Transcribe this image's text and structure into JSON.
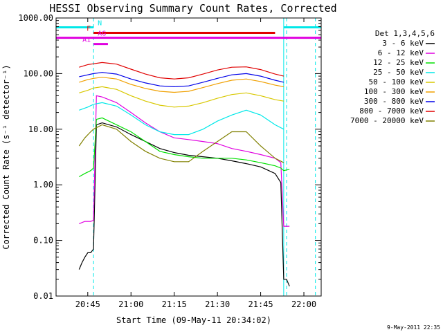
{
  "chart_data": {
    "type": "line",
    "title": "HESSI Observing Summary Count Rates, Corrected",
    "xlabel": "Start Time (09-May-11 20:34:02)",
    "ylabel": "Corrected Count Rate (s⁻¹ detector⁻¹)",
    "y_scale": "log",
    "ylim": [
      0.01,
      1000
    ],
    "xlim": [
      "20:34",
      "22:06"
    ],
    "x_ticks": [
      "20:45",
      "21:00",
      "21:15",
      "21:30",
      "21:45",
      "22:00"
    ],
    "y_ticks": [
      "0.01",
      "0.10",
      "1.00",
      "10.00",
      "100.00",
      "1000.00"
    ],
    "legend_title": "Det 1,3,4,5,6",
    "legend_placement": "right",
    "date_stamp": "9-May-2011 22:35",
    "series": [
      {
        "name": "3 - 6 keV",
        "color": "#000000",
        "x": [
          "20:42",
          "20:43",
          "20:44",
          "20:45",
          "20:46",
          "20:47",
          "20:48",
          "20:50",
          "20:55",
          "21:00",
          "21:05",
          "21:10",
          "21:15",
          "21:20",
          "21:25",
          "21:30",
          "21:35",
          "21:40",
          "21:45",
          "21:50",
          "21:52",
          "21:53",
          "21:54",
          "21:55"
        ],
        "values": [
          0.03,
          0.04,
          0.05,
          0.06,
          0.06,
          0.07,
          12,
          13,
          11,
          8,
          6,
          4.5,
          3.8,
          3.4,
          3.2,
          3.0,
          2.7,
          2.4,
          2.1,
          1.6,
          1.1,
          0.02,
          0.02,
          0.015
        ]
      },
      {
        "name": "6 - 12 keV",
        "color": "#e000e0",
        "x": [
          "20:42",
          "20:44",
          "20:46",
          "20:47",
          "20:48",
          "20:50",
          "20:55",
          "21:00",
          "21:05",
          "21:10",
          "21:15",
          "21:20",
          "21:25",
          "21:30",
          "21:35",
          "21:40",
          "21:45",
          "21:50",
          "21:52",
          "21:53",
          "21:55"
        ],
        "values": [
          0.2,
          0.22,
          0.22,
          0.23,
          40,
          38,
          30,
          20,
          13,
          9,
          7,
          6.5,
          6,
          5.5,
          4.5,
          4,
          3.5,
          3,
          2.5,
          0.18,
          0.18
        ]
      },
      {
        "name": "12 - 25 keV",
        "color": "#00e000",
        "x": [
          "20:42",
          "20:44",
          "20:46",
          "20:47",
          "20:48",
          "20:50",
          "20:55",
          "21:00",
          "21:05",
          "21:10",
          "21:15",
          "21:20",
          "21:25",
          "21:30",
          "21:35",
          "21:40",
          "21:45",
          "21:50",
          "21:52",
          "21:53",
          "21:55"
        ],
        "values": [
          1.4,
          1.6,
          1.8,
          2,
          15,
          16,
          12,
          9,
          6,
          4,
          3.5,
          3.2,
          3,
          3,
          3,
          2.8,
          2.5,
          2.2,
          2,
          1.8,
          1.9
        ]
      },
      {
        "name": "25 - 50 keV",
        "color": "#00e8e8",
        "x": [
          "20:42",
          "20:45",
          "20:47",
          "20:50",
          "20:55",
          "21:00",
          "21:05",
          "21:10",
          "21:15",
          "21:20",
          "21:25",
          "21:30",
          "21:35",
          "21:40",
          "21:45",
          "21:50",
          "21:53"
        ],
        "values": [
          22,
          25,
          28,
          30,
          26,
          18,
          12,
          9,
          8,
          8,
          10,
          14,
          18,
          22,
          18,
          12,
          10
        ]
      },
      {
        "name": "50 - 100 keV",
        "color": "#d8c800",
        "x": [
          "20:42",
          "20:45",
          "20:47",
          "20:50",
          "20:55",
          "21:00",
          "21:05",
          "21:10",
          "21:15",
          "21:20",
          "21:25",
          "21:30",
          "21:35",
          "21:40",
          "21:45",
          "21:50",
          "21:53"
        ],
        "values": [
          45,
          50,
          55,
          58,
          52,
          40,
          32,
          27,
          25,
          26,
          30,
          36,
          42,
          45,
          40,
          34,
          32
        ]
      },
      {
        "name": "100 - 300 keV",
        "color": "#f0a000",
        "x": [
          "20:42",
          "20:45",
          "20:47",
          "20:50",
          "20:55",
          "21:00",
          "21:05",
          "21:10",
          "21:15",
          "21:20",
          "21:25",
          "21:30",
          "21:35",
          "21:40",
          "21:45",
          "21:50",
          "21:53"
        ],
        "values": [
          70,
          78,
          82,
          86,
          80,
          64,
          54,
          48,
          46,
          48,
          56,
          66,
          76,
          80,
          72,
          62,
          58
        ]
      },
      {
        "name": "300 - 800 keV",
        "color": "#0000e8",
        "x": [
          "20:42",
          "20:45",
          "20:47",
          "20:50",
          "20:55",
          "21:00",
          "21:05",
          "21:10",
          "21:15",
          "21:20",
          "21:25",
          "21:30",
          "21:35",
          "21:40",
          "21:45",
          "21:50",
          "21:53"
        ],
        "values": [
          88,
          95,
          100,
          105,
          98,
          80,
          68,
          60,
          58,
          60,
          70,
          82,
          95,
          100,
          90,
          76,
          70
        ]
      },
      {
        "name": "800 - 7000 keV",
        "color": "#e00000",
        "x": [
          "20:42",
          "20:45",
          "20:47",
          "20:50",
          "20:55",
          "21:00",
          "21:05",
          "21:10",
          "21:15",
          "21:20",
          "21:25",
          "21:30",
          "21:35",
          "21:40",
          "21:45",
          "21:50",
          "21:53"
        ],
        "values": [
          130,
          145,
          150,
          158,
          148,
          120,
          98,
          84,
          80,
          84,
          98,
          116,
          130,
          132,
          118,
          98,
          90
        ]
      },
      {
        "name": "7000 - 20000 keV",
        "color": "#808000",
        "x": [
          "20:42",
          "20:44",
          "20:46",
          "20:47",
          "20:50",
          "20:55",
          "21:00",
          "21:05",
          "21:10",
          "21:15",
          "21:20",
          "21:25",
          "21:30",
          "21:35",
          "21:40",
          "21:45",
          "21:50",
          "21:53"
        ],
        "values": [
          5,
          7,
          9,
          10,
          12,
          10,
          6,
          4,
          3,
          2.6,
          2.6,
          4,
          6,
          9,
          9,
          5,
          3,
          2.5
        ]
      }
    ],
    "annotations": [
      {
        "label": "N",
        "color": "#00e8e8",
        "y": 680
      },
      {
        "label": "F",
        "color": "#e00000",
        "y": 540
      },
      {
        "label": "AG",
        "color": "#e000e0",
        "y": 440
      },
      {
        "label": "A1",
        "color": "#e000e0",
        "y": 340
      }
    ]
  }
}
